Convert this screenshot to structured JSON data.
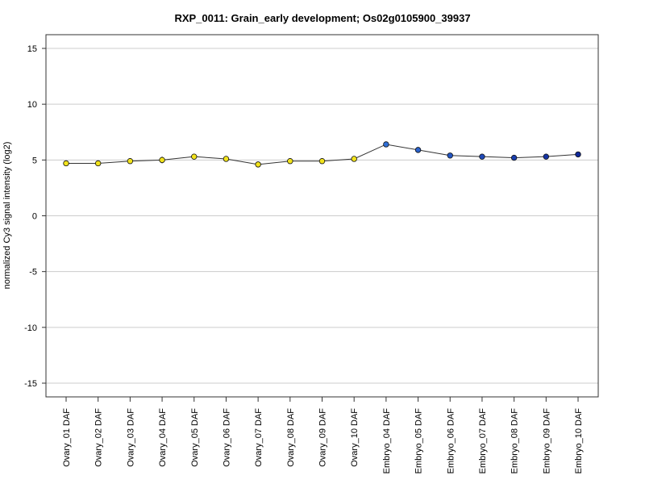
{
  "chart_data": {
    "type": "line",
    "title": "RXP_0011: Grain_early development; Os02g0105900_39937",
    "xlabel": "",
    "ylabel": "normalized Cy3 signal intensity (log2)",
    "ylim": [
      -15,
      15
    ],
    "yticks": [
      -15,
      -10,
      -5,
      0,
      5,
      10,
      15
    ],
    "grid": true,
    "categories": [
      "Ovary_01 DAF",
      "Ovary_02 DAF",
      "Ovary_03 DAF",
      "Ovary_04 DAF",
      "Ovary_05 DAF",
      "Ovary_06 DAF",
      "Ovary_07 DAF",
      "Ovary_08 DAF",
      "Ovary_09 DAF",
      "Ovary_10 DAF",
      "Embryo_04 DAF",
      "Embryo_05 DAF",
      "Embryo_06 DAF",
      "Embryo_07 DAF",
      "Embryo_08 DAF",
      "Embryo_09 DAF",
      "Embryo_10 DAF"
    ],
    "values": [
      4.7,
      4.7,
      4.9,
      5.0,
      5.3,
      5.1,
      4.6,
      4.9,
      4.9,
      5.1,
      6.4,
      5.9,
      5.4,
      5.3,
      5.2,
      5.3,
      5.5
    ],
    "error": [
      0.1,
      0.1,
      0.15,
      0.3,
      0.15,
      0.1,
      0.1,
      0.2,
      0.15,
      0.15,
      0.1,
      0.1,
      0.1,
      0.1,
      0.1,
      0.1,
      0.1
    ],
    "point_colors": [
      "#f2e31c",
      "#f2e31c",
      "#f2e31c",
      "#f2e31c",
      "#f2e31c",
      "#f2e31c",
      "#f2e31c",
      "#f2e31c",
      "#f2e31c",
      "#f2e31c",
      "#2f6fd6",
      "#2a62cc",
      "#2456c2",
      "#1f4ab8",
      "#1a3fae",
      "#1534a4",
      "#10299a"
    ],
    "line_color": "#333333",
    "grid_color": "#cccccc"
  }
}
